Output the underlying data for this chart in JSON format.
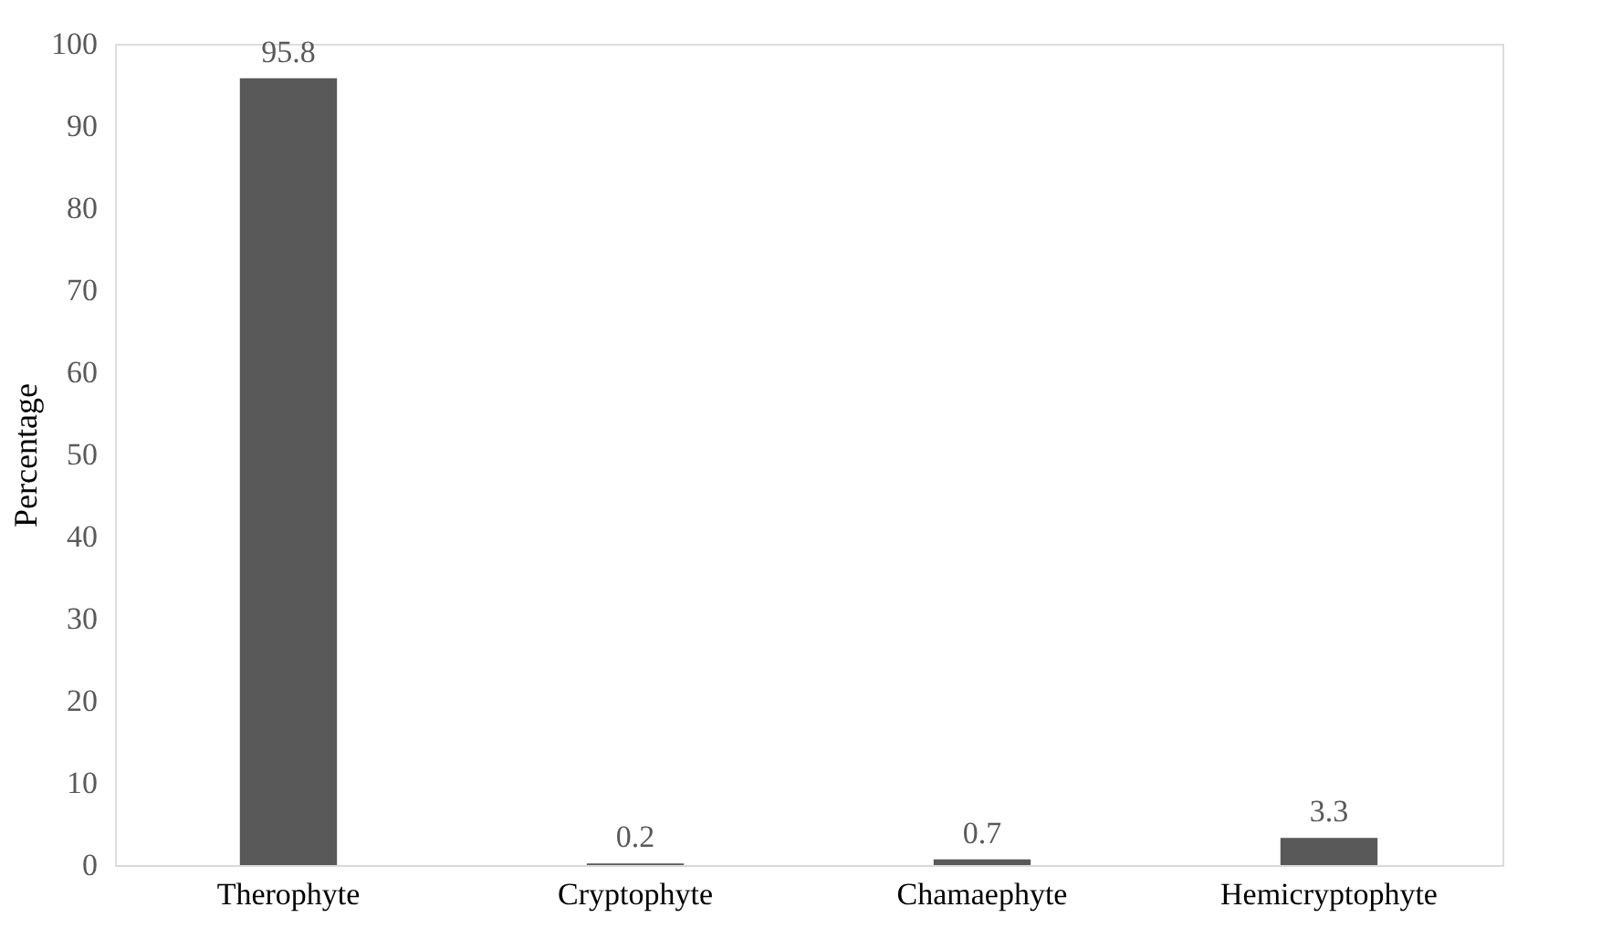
{
  "chart_data": {
    "type": "bar",
    "ylabel": "Percentage",
    "categories": [
      "Therophyte",
      "Cryptophyte",
      "Chamaephyte",
      "Hemicryptophyte"
    ],
    "values": [
      95.8,
      0.2,
      0.7,
      3.3
    ],
    "color": "#595959",
    "ylim": [
      0,
      100
    ],
    "yticks": [
      0,
      10,
      20,
      30,
      40,
      50,
      60,
      70,
      80,
      90,
      100
    ],
    "grid": false,
    "data_labels": true
  }
}
